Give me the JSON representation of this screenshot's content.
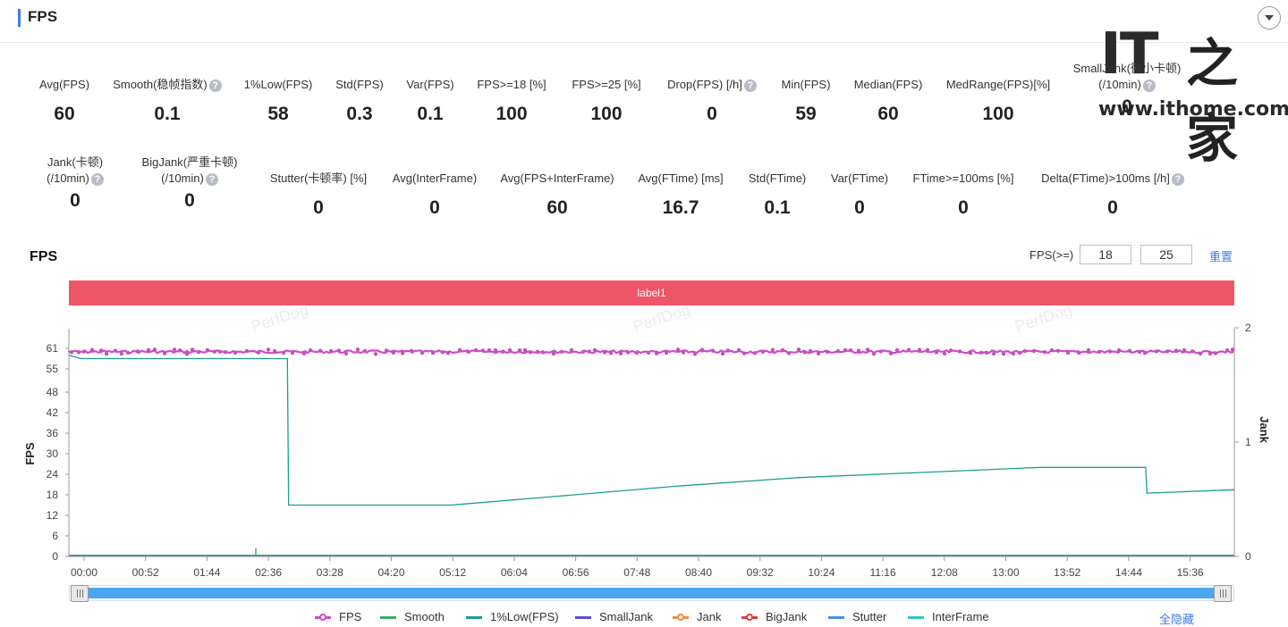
{
  "header": {
    "title": "FPS"
  },
  "watermark": {
    "logo_it": "IT",
    "logo_home": "之家",
    "url": "www.ithome.com"
  },
  "metrics_row1": [
    {
      "label": "Avg(FPS)",
      "value": "60",
      "help": false
    },
    {
      "label": "Smooth(稳帧指数)",
      "value": "0.1",
      "help": true
    },
    {
      "label": "1%Low(FPS)",
      "value": "58",
      "help": false
    },
    {
      "label": "Std(FPS)",
      "value": "0.3",
      "help": false
    },
    {
      "label": "Var(FPS)",
      "value": "0.1",
      "help": false
    },
    {
      "label": "FPS>=18 [%]",
      "value": "100",
      "help": false
    },
    {
      "label": "FPS>=25 [%]",
      "value": "100",
      "help": false
    },
    {
      "label": "Drop(FPS) [/h]",
      "value": "0",
      "help": true
    },
    {
      "label": "Min(FPS)",
      "value": "59",
      "help": false
    },
    {
      "label": "Median(FPS)",
      "value": "60",
      "help": false
    },
    {
      "label": "MedRange(FPS)[%]",
      "value": "100",
      "help": false
    },
    {
      "label": "SmallJank(微小卡顿)",
      "label2": "(/10min)",
      "value": "0",
      "help": true
    }
  ],
  "metrics_row2": [
    {
      "label": "Jank(卡顿)",
      "label2": "(/10min)",
      "value": "0",
      "help": true
    },
    {
      "label": "BigJank(严重卡顿)",
      "label2": "(/10min)",
      "value": "0",
      "help": true
    },
    {
      "label": "Stutter(卡顿率) [%]",
      "value": "0",
      "help": false
    },
    {
      "label": "Avg(InterFrame)",
      "value": "0",
      "help": false
    },
    {
      "label": "Avg(FPS+InterFrame)",
      "value": "60",
      "help": false
    },
    {
      "label": "Avg(FTime) [ms]",
      "value": "16.7",
      "help": false
    },
    {
      "label": "Std(FTime)",
      "value": "0.1",
      "help": false
    },
    {
      "label": "Var(FTime)",
      "value": "0",
      "help": false
    },
    {
      "label": "FTime>=100ms [%]",
      "value": "0",
      "help": false
    },
    {
      "label": "Delta(FTime)>100ms [/h]",
      "value": "0",
      "help": true
    }
  ],
  "chart_header": {
    "title": "FPS",
    "threshold_label": "FPS(>=)",
    "threshold_1": "18",
    "threshold_2": "25",
    "reset_label": "重置"
  },
  "label_bar": "label1",
  "watermark_text": "PerfDog",
  "chart_data": {
    "type": "line",
    "ylabel": "FPS",
    "y2label": "Jank",
    "y_ticks": [
      "0",
      "6",
      "12",
      "18",
      "24",
      "30",
      "36",
      "42",
      "48",
      "55",
      "61"
    ],
    "y2_ticks": [
      "0",
      "1",
      "2"
    ],
    "x_ticks": [
      "00:00",
      "00:52",
      "01:44",
      "02:36",
      "03:28",
      "04:20",
      "05:12",
      "06:04",
      "06:56",
      "07:48",
      "08:40",
      "09:32",
      "10:24",
      "11:16",
      "12:08",
      "13:00",
      "13:52",
      "14:44",
      "15:36"
    ],
    "series": [
      {
        "name": "FPS",
        "color": "#c94fbf",
        "x": [
          0,
          960
        ],
        "y": [
          60,
          60
        ]
      },
      {
        "name": "Smooth",
        "color": "#3daa6a",
        "x": [
          0,
          960
        ],
        "y": [
          0.1,
          0.1
        ]
      },
      {
        "name": "1%Low(FPS)",
        "color": "#1b9e8e",
        "x": [
          0,
          10,
          60,
          120,
          170,
          180,
          181,
          200,
          315,
          400,
          500,
          600,
          700,
          800,
          887,
          888,
          960
        ],
        "y": [
          59,
          58,
          58,
          58,
          58,
          58,
          15,
          15,
          15,
          17.5,
          20.5,
          23,
          24.5,
          26,
          26,
          18.5,
          19.5
        ]
      },
      {
        "name": "SmallJank",
        "color": "#5b50d6",
        "x": [
          0,
          960
        ],
        "y": [
          0,
          0
        ]
      },
      {
        "name": "Jank",
        "color": "#f08a3a",
        "x": [
          0,
          960
        ],
        "y": [
          0,
          0
        ]
      },
      {
        "name": "BigJank",
        "color": "#d63f3f",
        "x": [
          0,
          960
        ],
        "y": [
          0,
          0
        ]
      },
      {
        "name": "Stutter",
        "color": "#4a90d9",
        "x": [
          0,
          960
        ],
        "y": [
          0,
          0
        ]
      },
      {
        "name": "InterFrame",
        "color": "#2ec4c4",
        "x": [
          0,
          960
        ],
        "y": [
          0,
          0
        ]
      }
    ],
    "xlim_seconds": [
      0,
      960
    ],
    "ylim": [
      0,
      61
    ],
    "y2lim": [
      0,
      2
    ]
  },
  "legend": [
    {
      "name": "FPS",
      "color": "#c94fbf",
      "marker": true
    },
    {
      "name": "Smooth",
      "color": "#3daa6a",
      "marker": false
    },
    {
      "name": "1%Low(FPS)",
      "color": "#1b9e8e",
      "marker": false
    },
    {
      "name": "SmallJank",
      "color": "#5b50d6",
      "marker": false
    },
    {
      "name": "Jank",
      "color": "#f08a3a",
      "marker": true
    },
    {
      "name": "BigJank",
      "color": "#d63f3f",
      "marker": true
    },
    {
      "name": "Stutter",
      "color": "#4a90d9",
      "marker": false
    },
    {
      "name": "InterFrame",
      "color": "#2ec4c4",
      "marker": false
    }
  ],
  "hide_all_label": "全隐藏"
}
